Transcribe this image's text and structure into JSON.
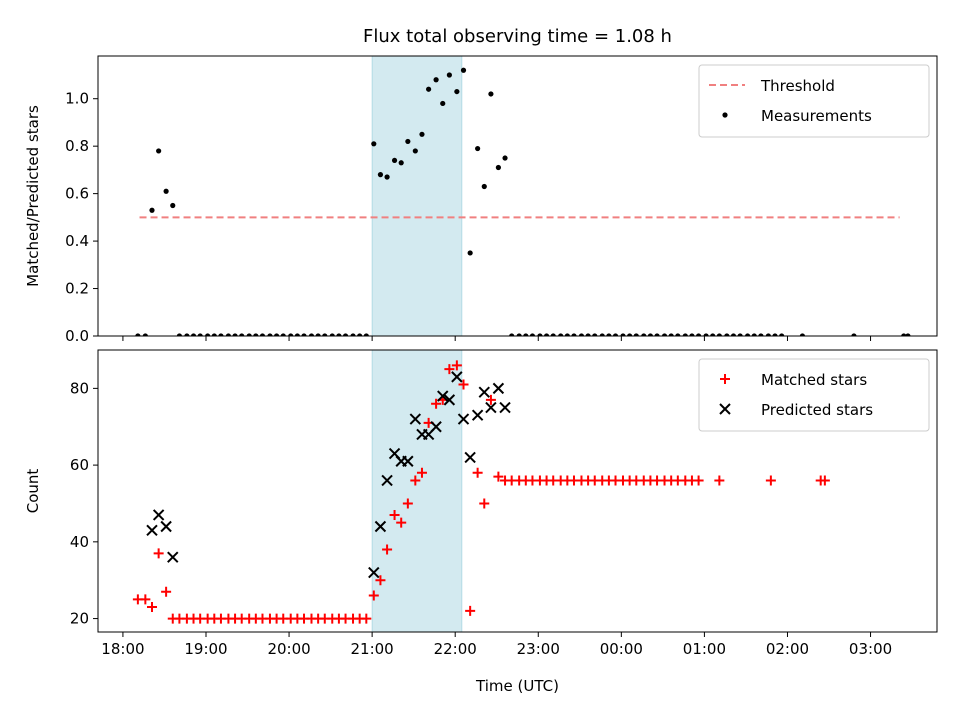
{
  "chart_data": [
    {
      "type": "scatter",
      "title": "Flux total observing time = 1.08 h",
      "xlabel": "",
      "ylabel": "Matched/Predicted stars",
      "xlim": [
        -0.3,
        9.8
      ],
      "ylim": [
        0,
        1.18
      ],
      "yticks": [
        0.0,
        0.2,
        0.4,
        0.6,
        0.8,
        1.0
      ],
      "ytick_labels": [
        "0.0",
        "0.2",
        "0.4",
        "0.6",
        "0.8",
        "1.0"
      ],
      "grid": false,
      "legend_position": "top-right",
      "highlight_span": [
        3.0,
        4.08
      ],
      "highlight_color": "#d3eaf0",
      "threshold": {
        "name": "Threshold",
        "y": 0.5,
        "x": [
          0.2,
          9.35
        ],
        "color": "#f08080",
        "style": "dashed"
      },
      "series": [
        {
          "name": "Measurements",
          "color": "#000000",
          "marker": "dot",
          "x": [
            0.18,
            0.27,
            0.35,
            0.43,
            0.52,
            0.6,
            0.68,
            0.77,
            0.85,
            0.93,
            1.02,
            1.1,
            1.18,
            1.27,
            1.35,
            1.43,
            1.52,
            1.6,
            1.68,
            1.77,
            1.85,
            1.93,
            2.02,
            2.1,
            2.18,
            2.27,
            2.35,
            2.43,
            2.52,
            2.6,
            2.68,
            2.77,
            2.85,
            2.93,
            3.02,
            3.1,
            3.18,
            3.27,
            3.35,
            3.43,
            3.52,
            3.6,
            3.68,
            3.77,
            3.85,
            3.93,
            4.02,
            4.1,
            4.18,
            4.27,
            4.35,
            4.43,
            4.52,
            4.6,
            4.68,
            4.77,
            4.85,
            4.93,
            5.02,
            5.1,
            5.18,
            5.27,
            5.35,
            5.43,
            5.52,
            5.6,
            5.68,
            5.77,
            5.85,
            5.93,
            6.02,
            6.1,
            6.18,
            6.27,
            6.35,
            6.43,
            6.52,
            6.6,
            6.68,
            6.77,
            6.85,
            6.93,
            7.02,
            7.1,
            7.18,
            7.27,
            7.35,
            7.43,
            7.52,
            7.6,
            7.68,
            7.77,
            7.85,
            7.93,
            8.18,
            8.8,
            9.4,
            9.45
          ],
          "y": [
            0.0,
            0.0,
            0.53,
            0.78,
            0.61,
            0.55,
            0.0,
            0.0,
            0.0,
            0.0,
            0.0,
            0.0,
            0.0,
            0.0,
            0.0,
            0.0,
            0.0,
            0.0,
            0.0,
            0.0,
            0.0,
            0.0,
            0.0,
            0.0,
            0.0,
            0.0,
            0.0,
            0.0,
            0.0,
            0.0,
            0.0,
            0.0,
            0.0,
            0.0,
            0.81,
            0.68,
            0.67,
            0.74,
            0.73,
            0.82,
            0.78,
            0.85,
            1.04,
            1.08,
            0.98,
            1.1,
            1.03,
            1.12,
            0.35,
            0.79,
            0.63,
            1.02,
            0.71,
            0.75,
            0.0,
            0.0,
            0.0,
            0.0,
            0.0,
            0.0,
            0.0,
            0.0,
            0.0,
            0.0,
            0.0,
            0.0,
            0.0,
            0.0,
            0.0,
            0.0,
            0.0,
            0.0,
            0.0,
            0.0,
            0.0,
            0.0,
            0.0,
            0.0,
            0.0,
            0.0,
            0.0,
            0.0,
            0.0,
            0.0,
            0.0,
            0.0,
            0.0,
            0.0,
            0.0,
            0.0,
            0.0,
            0.0,
            0.0,
            0.0,
            0.0,
            0.0,
            0.0,
            0.0
          ]
        }
      ]
    },
    {
      "type": "scatter",
      "title": "",
      "xlabel": "Time (UTC)",
      "ylabel": "Count",
      "xlim": [
        -0.3,
        9.8
      ],
      "ylim": [
        16.5,
        90
      ],
      "yticks": [
        20,
        40,
        60,
        80
      ],
      "ytick_labels": [
        "20",
        "40",
        "60",
        "80"
      ],
      "xticks": [
        0,
        1,
        2,
        3,
        4,
        5,
        6,
        7,
        8,
        9
      ],
      "xtick_labels": [
        "18:00",
        "19:00",
        "20:00",
        "21:00",
        "22:00",
        "23:00",
        "00:00",
        "01:00",
        "02:00",
        "03:00"
      ],
      "grid": false,
      "legend_position": "top-right",
      "highlight_span": [
        3.0,
        4.08
      ],
      "highlight_color": "#d3eaf0",
      "series": [
        {
          "name": "Matched stars",
          "color": "#ff0000",
          "marker": "plus",
          "x": [
            0.18,
            0.27,
            0.35,
            0.43,
            0.52,
            0.6,
            0.68,
            0.77,
            0.85,
            0.93,
            1.02,
            1.1,
            1.18,
            1.27,
            1.35,
            1.43,
            1.52,
            1.6,
            1.68,
            1.77,
            1.85,
            1.93,
            2.02,
            2.1,
            2.18,
            2.27,
            2.35,
            2.43,
            2.52,
            2.6,
            2.68,
            2.77,
            2.85,
            2.93,
            3.02,
            3.1,
            3.18,
            3.27,
            3.35,
            3.43,
            3.52,
            3.6,
            3.68,
            3.77,
            3.85,
            3.93,
            4.02,
            4.1,
            4.18,
            4.27,
            4.35,
            4.43,
            4.52,
            4.6,
            4.68,
            4.77,
            4.85,
            4.93,
            5.02,
            5.1,
            5.18,
            5.27,
            5.35,
            5.43,
            5.52,
            5.6,
            5.68,
            5.77,
            5.85,
            5.93,
            6.02,
            6.1,
            6.18,
            6.27,
            6.35,
            6.43,
            6.52,
            6.6,
            6.68,
            6.77,
            6.85,
            6.93,
            7.18,
            7.8,
            8.4,
            8.45
          ],
          "y": [
            25,
            25,
            23,
            37,
            27,
            20,
            20,
            20,
            20,
            20,
            20,
            20,
            20,
            20,
            20,
            20,
            20,
            20,
            20,
            20,
            20,
            20,
            20,
            20,
            20,
            20,
            20,
            20,
            20,
            20,
            20,
            20,
            20,
            20,
            26,
            30,
            38,
            47,
            45,
            50,
            56,
            58,
            71,
            76,
            77,
            85,
            86,
            81,
            22,
            58,
            50,
            77,
            57,
            56,
            56,
            56,
            56,
            56,
            56,
            56,
            56,
            56,
            56,
            56,
            56,
            56,
            56,
            56,
            56,
            56,
            56,
            56,
            56,
            56,
            56,
            56,
            56,
            56,
            56,
            56,
            56,
            56,
            56,
            56,
            56,
            56
          ]
        },
        {
          "name": "Predicted stars",
          "color": "#000000",
          "marker": "x",
          "x": [
            0.35,
            0.43,
            0.52,
            0.6,
            3.02,
            3.1,
            3.18,
            3.27,
            3.35,
            3.43,
            3.52,
            3.6,
            3.68,
            3.77,
            3.85,
            3.93,
            4.02,
            4.1,
            4.18,
            4.27,
            4.35,
            4.43,
            4.52,
            4.6
          ],
          "y": [
            43,
            47,
            44,
            36,
            32,
            44,
            56,
            63,
            61,
            61,
            72,
            68,
            68,
            70,
            78,
            77,
            83,
            72,
            62,
            73,
            79,
            75,
            80,
            75
          ]
        }
      ]
    }
  ]
}
